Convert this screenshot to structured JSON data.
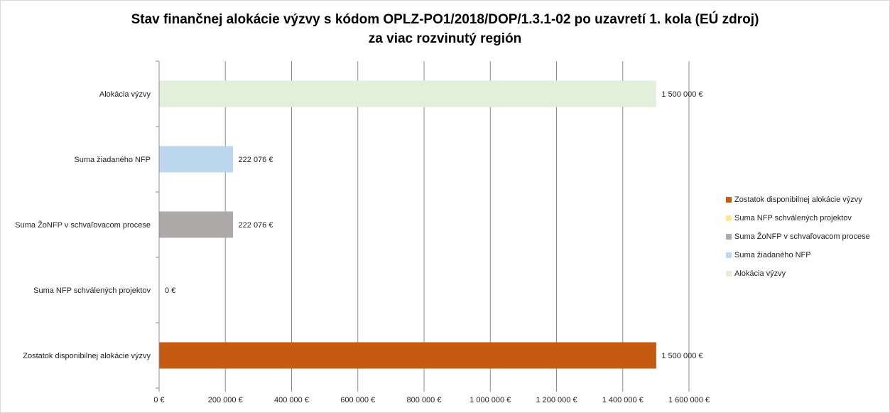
{
  "chart_data": {
    "type": "bar",
    "orientation": "horizontal",
    "title": "Stav finančnej alokácie výzvy s kódom OPLZ-PO1/2018/DOP/1.3.1-02 po uzavretí 1. kola (EÚ zdroj)",
    "subtitle": "za viac rozvinutý región",
    "categories": [
      "Alokácia výzvy",
      "Suma žiadaného NFP",
      "Suma ŽoNFP v schvaľovacom procese",
      "Suma NFP schválených projektov",
      "Zostatok disponibilnej alokácie výzvy"
    ],
    "values": [
      1500000,
      222076,
      222076,
      0,
      1500000
    ],
    "data_labels": [
      "1 500 000 €",
      "222 076 €",
      "222 076 €",
      "0 €",
      "1 500 000 €"
    ],
    "colors": [
      "#e2efda",
      "#bdd7ee",
      "#aeaaaa",
      "#ffe699",
      "#c55a11"
    ],
    "xlim": [
      0,
      1600000
    ],
    "x_ticks": [
      0,
      200000,
      400000,
      600000,
      800000,
      1000000,
      1200000,
      1400000,
      1600000
    ],
    "x_tick_labels": [
      "0 €",
      "200 000 €",
      "400 000 €",
      "600 000 €",
      "800 000 €",
      "1 000 000 €",
      "1 200 000 €",
      "1 400 000 €",
      "1 600 000 €"
    ],
    "grid": "vertical",
    "legend_position": "right",
    "legend": [
      {
        "label": "Zostatok disponibilnej alokácie výzvy",
        "color": "#c55a11"
      },
      {
        "label": "Suma NFP schválených projektov",
        "color": "#ffe699"
      },
      {
        "label": "Suma ŽoNFP v schvaľovacom procese",
        "color": "#aeaaaa"
      },
      {
        "label": "Suma žiadaného NFP",
        "color": "#bdd7ee"
      },
      {
        "label": "Alokácia výzvy",
        "color": "#e2efda"
      }
    ]
  }
}
